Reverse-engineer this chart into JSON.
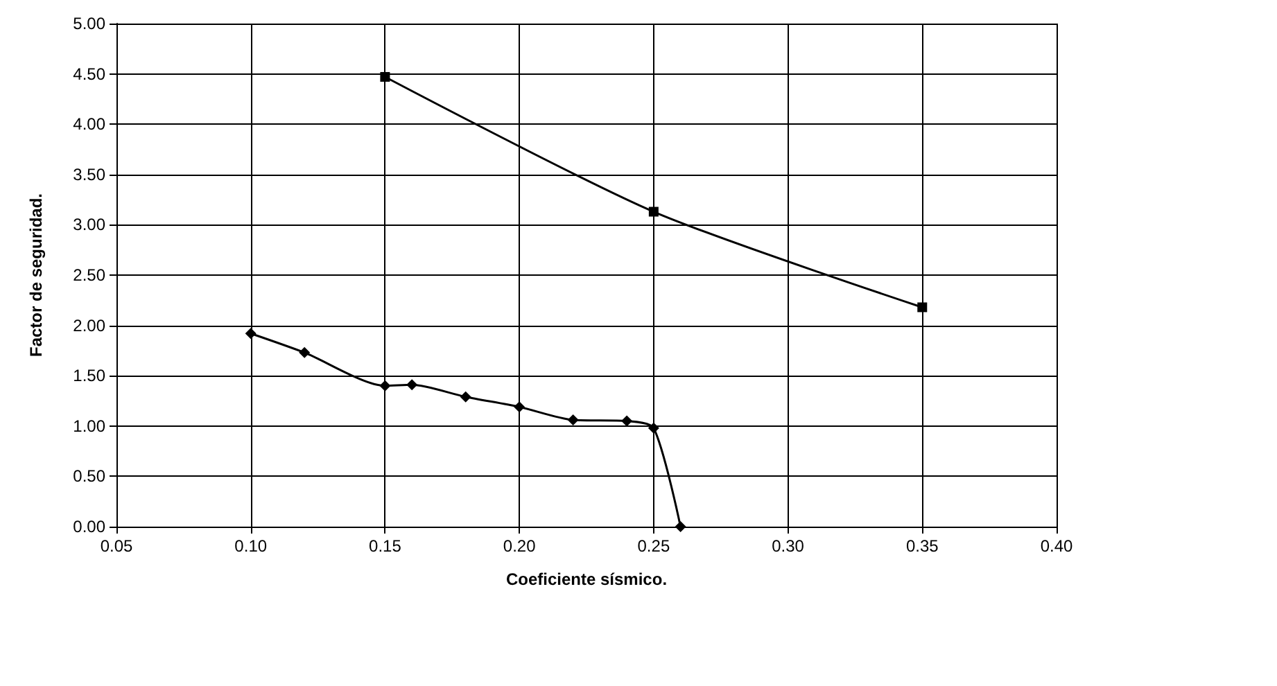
{
  "chart_data": {
    "type": "line",
    "xlabel": "Coeficiente sísmico.",
    "ylabel": "Factor de seguridad.",
    "xlim": [
      0.05,
      0.4
    ],
    "xticks": [
      {
        "value": 0.05,
        "label": "0.05"
      },
      {
        "value": 0.1,
        "label": "0.10"
      },
      {
        "value": 0.15,
        "label": "0.15"
      },
      {
        "value": 0.2,
        "label": "0.20"
      },
      {
        "value": 0.25,
        "label": "0.25"
      },
      {
        "value": 0.3,
        "label": "0.30"
      },
      {
        "value": 0.35,
        "label": "0.35"
      },
      {
        "value": 0.4,
        "label": "0.40"
      }
    ],
    "ylim": [
      0,
      5
    ],
    "yticks": [
      {
        "value": 0,
        "label": "0.00"
      },
      {
        "value": 0.5,
        "label": "0.50"
      },
      {
        "value": 1,
        "label": "1.00"
      },
      {
        "value": 1.5,
        "label": "1.50"
      },
      {
        "value": 2,
        "label": "2.00"
      },
      {
        "value": 2.5,
        "label": "2.50"
      },
      {
        "value": 3,
        "label": "3.00"
      },
      {
        "value": 3.5,
        "label": "3.50"
      },
      {
        "value": 4,
        "label": "4.00"
      },
      {
        "value": 4.5,
        "label": "4.50"
      },
      {
        "value": 5,
        "label": "5.00"
      }
    ],
    "grid": true,
    "series": [
      {
        "color": "#000000",
        "marker": "diamond",
        "x": [
          0.1,
          0.12,
          0.15,
          0.16,
          0.18,
          0.2,
          0.22,
          0.24,
          0.25,
          0.26
        ],
        "values": [
          1.92,
          1.73,
          1.4,
          1.41,
          1.29,
          1.19,
          1.06,
          1.05,
          0.98,
          0.0
        ]
      },
      {
        "color": "#000000",
        "marker": "square",
        "x": [
          0.15,
          0.25,
          0.35
        ],
        "values": [
          4.47,
          3.13,
          2.18
        ]
      }
    ]
  }
}
